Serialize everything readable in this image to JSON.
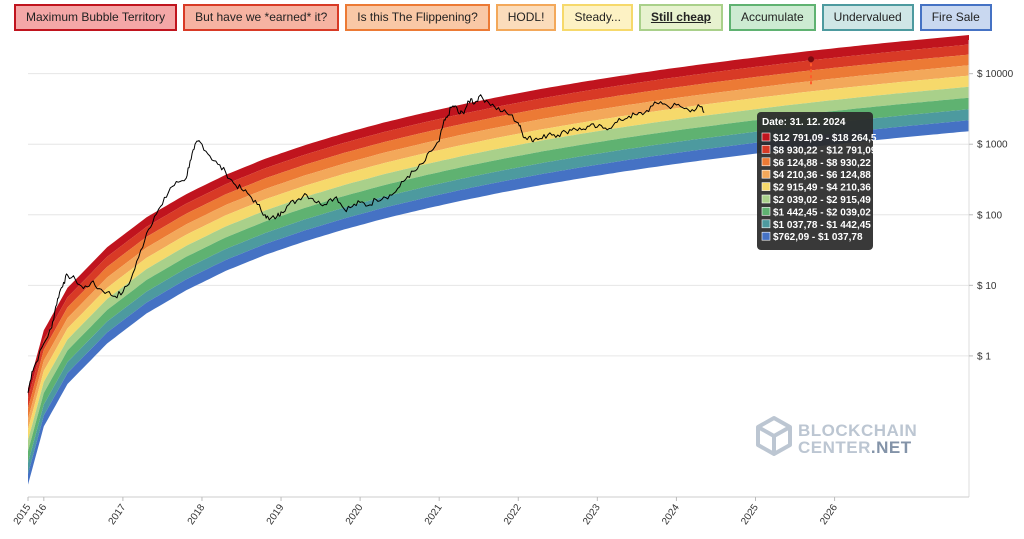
{
  "legend": {
    "items": [
      {
        "label": "Maximum Bubble Territory",
        "fill": "#f4a7a7",
        "border": "#c0141e",
        "active": false
      },
      {
        "label": "But have we *earned* it?",
        "fill": "#f6b3a2",
        "border": "#d83a26",
        "active": false
      },
      {
        "label": "Is this The Flippening?",
        "fill": "#f9c8a6",
        "border": "#ec7a35",
        "active": false
      },
      {
        "label": "HODL!",
        "fill": "#fbdcbb",
        "border": "#f3a85a",
        "active": false
      },
      {
        "label": "Steady...",
        "fill": "#fdf2c4",
        "border": "#f6d96b",
        "active": false
      },
      {
        "label": "Still cheap",
        "fill": "#e7f2cf",
        "border": "#a9d08a",
        "active": true
      },
      {
        "label": "Accumulate",
        "fill": "#cdebd2",
        "border": "#5fb271",
        "active": false
      },
      {
        "label": "Undervalued",
        "fill": "#cfe6e6",
        "border": "#4d9a9f",
        "active": false
      },
      {
        "label": "Fire Sale",
        "fill": "#c9d8f0",
        "border": "#4572c4",
        "active": false
      }
    ]
  },
  "watermark": {
    "line1": "BLOCKCHAIN",
    "line2": "CENTER",
    "suffix": ".NET"
  },
  "tooltip": {
    "date": "Date: 31. 12. 2024",
    "rows": [
      {
        "text": "$12 791,09 - $18 264,5",
        "color": "#c0141e"
      },
      {
        "text": "$8 930,22 - $12 791,09",
        "color": "#d83a26"
      },
      {
        "text": "$6 124,88 - $8 930,22",
        "color": "#ec7a35"
      },
      {
        "text": "$4 210,36 - $6 124,88",
        "color": "#f3a85a"
      },
      {
        "text": "$2 915,49 - $4 210,36",
        "color": "#f6d96b"
      },
      {
        "text": "$2 039,02 - $2 915,49",
        "color": "#a9d08a"
      },
      {
        "text": "$1 442,45 - $2 039,02",
        "color": "#5fb271"
      },
      {
        "text": "$1 037,78 - $1 442,45",
        "color": "#4d9a9f"
      },
      {
        "text": "$762,09 - $1 037,78",
        "color": "#4572c4"
      }
    ]
  },
  "chart_data": {
    "type": "area",
    "y_scale": "log",
    "ylim": [
      0.01,
      30000
    ],
    "xlim": [
      2015.0,
      2026.9
    ],
    "y_ticks": [
      {
        "value": 1,
        "label": "$ 1"
      },
      {
        "value": 10,
        "label": "$ 10"
      },
      {
        "value": 100,
        "label": "$ 100"
      },
      {
        "value": 1000,
        "label": "$ 1000"
      },
      {
        "value": 10000,
        "label": "$ 10000"
      }
    ],
    "x_ticks": [
      {
        "value": 2015.0,
        "label": "2015"
      },
      {
        "value": 2015.2,
        "label": "2016"
      },
      {
        "value": 2016.2,
        "label": "2017"
      },
      {
        "value": 2017.2,
        "label": "2018"
      },
      {
        "value": 2018.2,
        "label": "2019"
      },
      {
        "value": 2019.2,
        "label": "2020"
      },
      {
        "value": 2020.2,
        "label": "2021"
      },
      {
        "value": 2021.2,
        "label": "2022"
      },
      {
        "value": 2022.2,
        "label": "2023"
      },
      {
        "value": 2023.2,
        "label": "2024"
      },
      {
        "value": 2024.2,
        "label": "2025"
      },
      {
        "value": 2025.2,
        "label": "2026"
      }
    ],
    "band_colors": [
      "#c0141e",
      "#d83a26",
      "#ec7a35",
      "#f3a85a",
      "#f6d96b",
      "#a9d08a",
      "#5fb271",
      "#4d9a9f",
      "#4572c4"
    ],
    "band_names": [
      "Maximum Bubble Territory",
      "But have we *earned* it?",
      "Is this The Flippening?",
      "HODL!",
      "Steady...",
      "Still cheap",
      "Accumulate",
      "Undervalued",
      "Fire Sale"
    ],
    "band_boundaries_at_2024_12_31": [
      18264.5,
      12791.09,
      8930.22,
      6124.88,
      4210.36,
      2915.49,
      2039.02,
      1442.45,
      1037.78,
      762.09
    ],
    "band_bottom": [
      [
        2015.0,
        0.015
      ],
      [
        2015.2,
        0.1
      ],
      [
        2015.5,
        0.4
      ],
      [
        2016.0,
        1.5
      ],
      [
        2016.5,
        4
      ],
      [
        2017.0,
        8.5
      ],
      [
        2017.5,
        16
      ],
      [
        2018.0,
        27
      ],
      [
        2018.5,
        42
      ],
      [
        2019.0,
        62
      ],
      [
        2019.5,
        88
      ],
      [
        2020.0,
        120
      ],
      [
        2020.5,
        160
      ],
      [
        2021.0,
        208
      ],
      [
        2021.5,
        265
      ],
      [
        2022.0,
        330
      ],
      [
        2022.5,
        405
      ],
      [
        2023.0,
        490
      ],
      [
        2023.5,
        585
      ],
      [
        2024.0,
        690
      ],
      [
        2024.5,
        810
      ],
      [
        2025.0,
        940
      ],
      [
        2025.5,
        1080
      ],
      [
        2026.0,
        1230
      ],
      [
        2026.9,
        1530
      ]
    ],
    "band_ratios": [
      1.362,
      1.39,
      1.417,
      1.4,
      1.44,
      1.43,
      1.458,
      1.432,
      1.428
    ],
    "series": [
      {
        "name": "BTC price",
        "color": "#000000",
        "points": [
          [
            2015.0,
            0.3
          ],
          [
            2015.05,
            0.6
          ],
          [
            2015.1,
            0.8
          ],
          [
            2015.2,
            1.5
          ],
          [
            2015.3,
            2.5
          ],
          [
            2015.35,
            5
          ],
          [
            2015.4,
            8
          ],
          [
            2015.45,
            11
          ],
          [
            2015.5,
            14
          ],
          [
            2015.6,
            12
          ],
          [
            2015.7,
            9
          ],
          [
            2015.8,
            11
          ],
          [
            2015.9,
            9
          ],
          [
            2016.0,
            8
          ],
          [
            2016.1,
            7
          ],
          [
            2016.2,
            8
          ],
          [
            2016.3,
            12
          ],
          [
            2016.4,
            25
          ],
          [
            2016.5,
            55
          ],
          [
            2016.6,
            95
          ],
          [
            2016.7,
            140
          ],
          [
            2016.8,
            240
          ],
          [
            2016.9,
            290
          ],
          [
            2017.0,
            330
          ],
          [
            2017.05,
            580
          ],
          [
            2017.1,
            850
          ],
          [
            2017.15,
            1100
          ],
          [
            2017.2,
            1000
          ],
          [
            2017.3,
            680
          ],
          [
            2017.4,
            520
          ],
          [
            2017.5,
            400
          ],
          [
            2017.6,
            280
          ],
          [
            2017.7,
            230
          ],
          [
            2017.8,
            190
          ],
          [
            2017.9,
            140
          ],
          [
            2018.0,
            100
          ],
          [
            2018.05,
            85
          ],
          [
            2018.15,
            95
          ],
          [
            2018.2,
            110
          ],
          [
            2018.3,
            140
          ],
          [
            2018.4,
            160
          ],
          [
            2018.5,
            200
          ],
          [
            2018.6,
            170
          ],
          [
            2018.7,
            140
          ],
          [
            2018.8,
            160
          ],
          [
            2018.9,
            180
          ],
          [
            2019.0,
            120
          ],
          [
            2019.1,
            130
          ],
          [
            2019.2,
            150
          ],
          [
            2019.3,
            135
          ],
          [
            2019.4,
            165
          ],
          [
            2019.5,
            180
          ],
          [
            2019.6,
            190
          ],
          [
            2019.7,
            250
          ],
          [
            2019.8,
            350
          ],
          [
            2019.9,
            420
          ],
          [
            2020.0,
            540
          ],
          [
            2020.1,
            800
          ],
          [
            2020.2,
            1100
          ],
          [
            2020.25,
            1900
          ],
          [
            2020.3,
            2400
          ],
          [
            2020.35,
            3300
          ],
          [
            2020.4,
            3500
          ],
          [
            2020.45,
            2700
          ],
          [
            2020.5,
            2800
          ],
          [
            2020.55,
            3500
          ],
          [
            2020.6,
            4400
          ],
          [
            2020.65,
            3800
          ],
          [
            2020.7,
            4700
          ],
          [
            2020.8,
            4200
          ],
          [
            2020.9,
            3400
          ],
          [
            2021.0,
            2900
          ],
          [
            2021.1,
            2600
          ],
          [
            2021.2,
            2000
          ],
          [
            2021.25,
            1450
          ],
          [
            2021.3,
            1200
          ],
          [
            2021.35,
            1300
          ],
          [
            2021.4,
            1150
          ],
          [
            2021.5,
            1200
          ],
          [
            2021.6,
            1450
          ],
          [
            2021.7,
            1350
          ],
          [
            2021.8,
            1500
          ],
          [
            2021.9,
            1700
          ],
          [
            2022.0,
            1600
          ],
          [
            2022.1,
            1800
          ],
          [
            2022.2,
            1750
          ],
          [
            2022.3,
            1700
          ],
          [
            2022.4,
            1850
          ],
          [
            2022.5,
            2200
          ],
          [
            2022.6,
            2500
          ],
          [
            2022.7,
            2600
          ],
          [
            2022.8,
            2800
          ],
          [
            2022.9,
            3500
          ],
          [
            2023.0,
            4000
          ],
          [
            2023.1,
            3400
          ],
          [
            2023.2,
            3600
          ],
          [
            2023.3,
            3200
          ],
          [
            2023.4,
            3100
          ],
          [
            2023.5,
            3400
          ],
          [
            2023.55,
            2800
          ]
        ]
      }
    ]
  }
}
